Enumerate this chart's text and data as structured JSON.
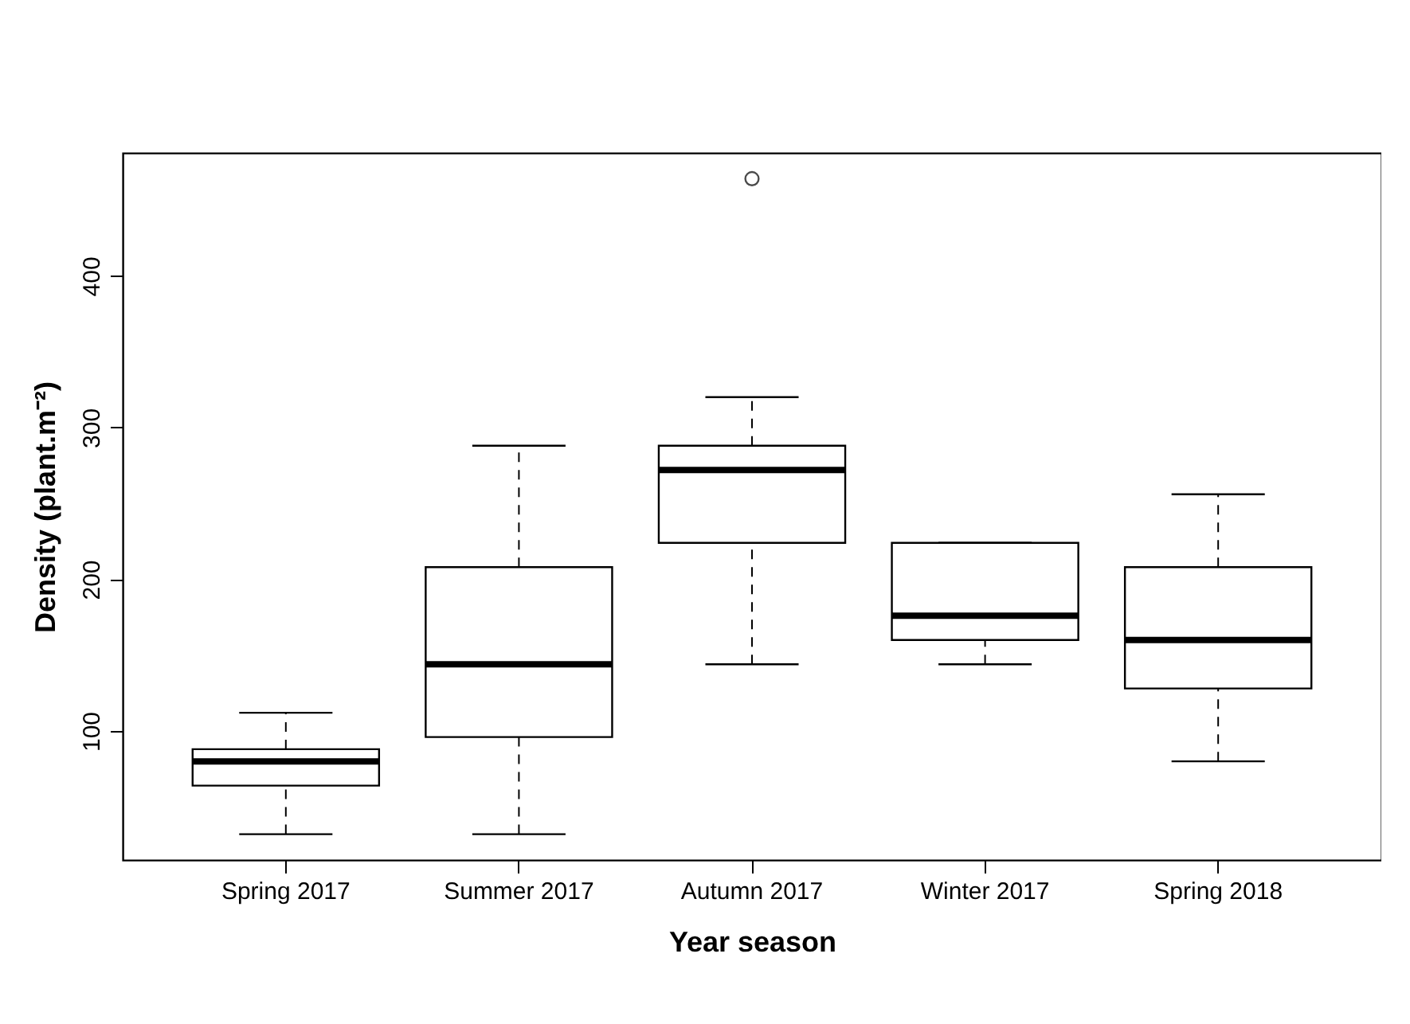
{
  "chart_data": {
    "type": "box",
    "xlabel": "Year season",
    "ylabel": "Density (plant.m⁻²)",
    "categories": [
      "Spring 2017",
      "Summer 2017",
      "Autumn 2017",
      "Winter 2017",
      "Spring 2018"
    ],
    "boxes": [
      {
        "low": 32,
        "q1": 64,
        "median": 80,
        "q3": 88,
        "high": 112
      },
      {
        "low": 32,
        "q1": 96,
        "median": 144,
        "q3": 208,
        "high": 288
      },
      {
        "low": 144,
        "q1": 224,
        "median": 272,
        "q3": 288,
        "high": 320,
        "outliers": [
          464
        ]
      },
      {
        "low": 144,
        "q1": 160,
        "median": 176,
        "q3": 224,
        "high": 224
      },
      {
        "low": 80,
        "q1": 128,
        "median": 160,
        "q3": 208,
        "high": 256
      }
    ],
    "ylim": [
      15,
      481
    ],
    "yticks": [
      100,
      200,
      300,
      400
    ],
    "grid": false
  }
}
